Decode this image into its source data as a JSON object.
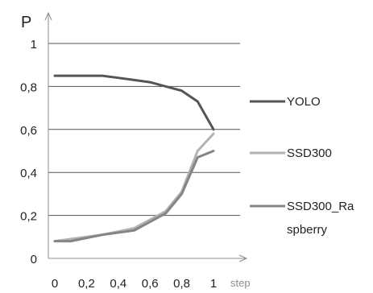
{
  "chart_data": {
    "type": "line",
    "title": "",
    "ylabel": "P",
    "xlabel": "step",
    "x": [
      0.0,
      0.1,
      0.3,
      0.4,
      0.5,
      0.6,
      0.7,
      0.8,
      0.9,
      1.0
    ],
    "xlim": [
      0,
      1.15
    ],
    "ylim": [
      0,
      1.15
    ],
    "xticks": [
      0,
      0.2,
      0.4,
      0.6,
      0.8,
      1.0
    ],
    "xtick_labels": [
      "0",
      "0,2",
      "0,4",
      "0,6",
      "0,8",
      "1"
    ],
    "yticks": [
      0,
      0.2,
      0.4,
      0.6,
      0.8,
      1.0
    ],
    "ytick_labels": [
      "0",
      "0,2",
      "0,4",
      "0,6",
      "0,8",
      "1"
    ],
    "grid": "horizontal",
    "legend_position": "right",
    "series": [
      {
        "name": "YOLO",
        "color": "#555555",
        "x": [
          0.0,
          0.1,
          0.3,
          0.4,
          0.5,
          0.6,
          0.7,
          0.8,
          0.9,
          1.0
        ],
        "values": [
          0.85,
          0.85,
          0.85,
          0.84,
          0.83,
          0.82,
          0.8,
          0.78,
          0.73,
          0.6
        ]
      },
      {
        "name": "SSD300",
        "color": "#b2b2b2",
        "x": [
          0.0,
          0.1,
          0.3,
          0.5,
          0.7,
          0.8,
          0.9,
          1.0
        ],
        "values": [
          0.08,
          0.09,
          0.11,
          0.14,
          0.22,
          0.31,
          0.5,
          0.58
        ]
      },
      {
        "name": "SSD300_Raspberry",
        "legend_lines": [
          "SSD300_Ra",
          "spberry"
        ],
        "color": "#858585",
        "x": [
          0.0,
          0.1,
          0.3,
          0.5,
          0.7,
          0.8,
          0.9,
          1.0
        ],
        "values": [
          0.08,
          0.08,
          0.11,
          0.13,
          0.21,
          0.3,
          0.47,
          0.5
        ]
      }
    ]
  }
}
